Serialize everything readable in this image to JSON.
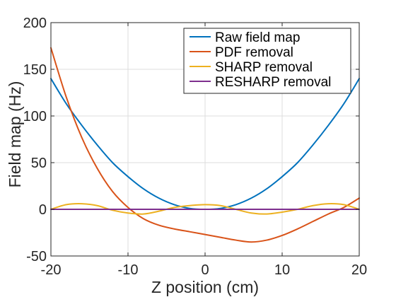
{
  "chart_data": {
    "type": "line",
    "title": "",
    "xlabel": "Z position (cm)",
    "ylabel": "Field map (Hz)",
    "xlim": [
      -20,
      20
    ],
    "ylim": [
      -50,
      200
    ],
    "x_ticks": [
      -20,
      -10,
      0,
      10,
      20
    ],
    "y_ticks": [
      -50,
      0,
      50,
      100,
      150,
      200
    ],
    "grid": true,
    "legend_position": "top-right",
    "x": [
      -20,
      -18,
      -16,
      -14,
      -12,
      -10,
      -8,
      -6,
      -4,
      -2,
      0,
      2,
      4,
      6,
      8,
      10,
      12,
      14,
      16,
      18,
      20
    ],
    "series": [
      {
        "name": "Raw field map",
        "color": "#0072BD",
        "values": [
          140,
          113,
          90,
          69,
          50,
          35,
          22,
          12,
          5,
          1,
          0,
          1,
          5,
          12,
          22,
          35,
          50,
          69,
          90,
          113,
          140
        ]
      },
      {
        "name": "PDF removal",
        "color": "#D95319",
        "values": [
          173,
          120,
          77,
          44,
          19,
          2,
          -10,
          -17,
          -21,
          -24,
          -27,
          -30,
          -33,
          -35,
          -33,
          -28,
          -21,
          -13,
          -5,
          2,
          12
        ]
      },
      {
        "name": "SHARP removal",
        "color": "#EDB120",
        "values": [
          0,
          5,
          6,
          4,
          -1,
          -4,
          -5,
          -2,
          2,
          4,
          5,
          4,
          0,
          -4,
          -5,
          -3,
          0,
          4,
          6,
          5,
          0
        ]
      },
      {
        "name": "RESHARP removal",
        "color": "#7E2F8E",
        "values": [
          0,
          0,
          0,
          0,
          0,
          0,
          0,
          0,
          0,
          0,
          0,
          0,
          0,
          0,
          0,
          0,
          0,
          0,
          0,
          0,
          0
        ]
      }
    ]
  }
}
